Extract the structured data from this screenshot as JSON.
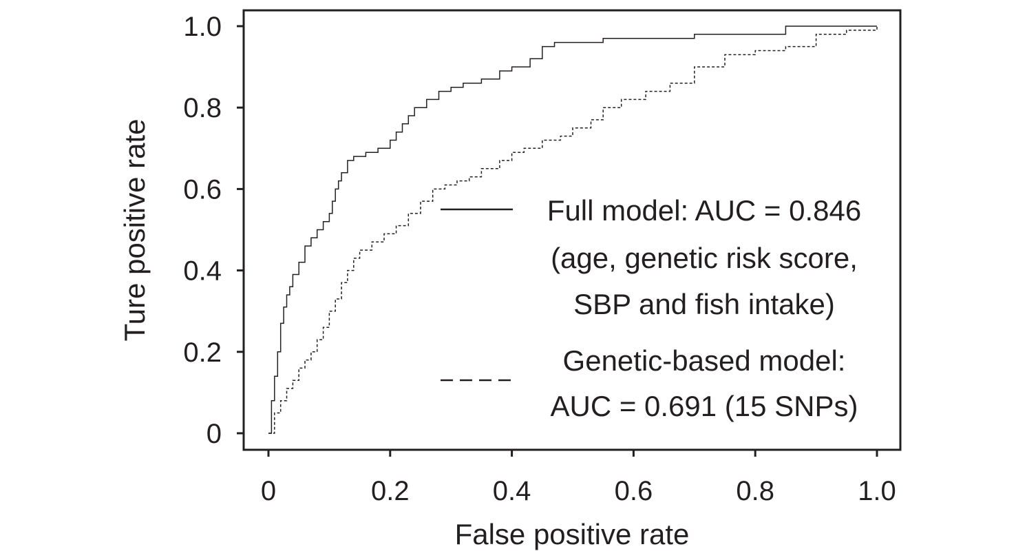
{
  "chart_data": {
    "type": "line",
    "xlabel": "False positive rate",
    "ylabel": "Ture positive rate",
    "xlim": [
      0,
      1
    ],
    "ylim": [
      0,
      1
    ],
    "x_ticks": [
      0,
      0.2,
      0.4,
      0.6,
      0.8,
      1.0
    ],
    "x_tick_labels": [
      "0",
      "0.2",
      "0.4",
      "0.6",
      "0.8",
      "1.0"
    ],
    "y_ticks": [
      0,
      0.2,
      0.4,
      0.6,
      0.8,
      1.0
    ],
    "y_tick_labels": [
      "0",
      "0.2",
      "0.4",
      "0.6",
      "0.8",
      "1.0"
    ],
    "grid": false,
    "legend_position": "right",
    "series": [
      {
        "legend_lines": [
          "Full model: AUC = 0.846",
          "(age, genetic risk score,",
          "SBP and fish intake)"
        ],
        "line_style": "solid",
        "x": [
          0,
          0.005,
          0.01,
          0.015,
          0.02,
          0.025,
          0.03,
          0.035,
          0.04,
          0.05,
          0.06,
          0.07,
          0.08,
          0.09,
          0.1,
          0.105,
          0.11,
          0.115,
          0.12,
          0.13,
          0.14,
          0.16,
          0.18,
          0.2,
          0.21,
          0.22,
          0.23,
          0.24,
          0.26,
          0.28,
          0.3,
          0.32,
          0.35,
          0.38,
          0.4,
          0.43,
          0.45,
          0.47,
          0.5,
          0.55,
          0.6,
          0.7,
          0.85,
          0.95,
          1.0
        ],
        "y": [
          0,
          0.08,
          0.14,
          0.2,
          0.27,
          0.31,
          0.34,
          0.36,
          0.39,
          0.42,
          0.46,
          0.48,
          0.5,
          0.52,
          0.54,
          0.57,
          0.6,
          0.62,
          0.64,
          0.67,
          0.68,
          0.69,
          0.7,
          0.72,
          0.74,
          0.76,
          0.78,
          0.8,
          0.82,
          0.84,
          0.85,
          0.86,
          0.87,
          0.89,
          0.9,
          0.92,
          0.95,
          0.96,
          0.96,
          0.97,
          0.97,
          0.98,
          1.0,
          1.0,
          1.0
        ]
      },
      {
        "legend_lines": [
          "Genetic-based model:",
          "AUC = 0.691 (15 SNPs)"
        ],
        "line_style": "dashed",
        "x": [
          0,
          0.01,
          0.02,
          0.03,
          0.04,
          0.05,
          0.06,
          0.07,
          0.08,
          0.09,
          0.1,
          0.11,
          0.12,
          0.13,
          0.14,
          0.15,
          0.17,
          0.19,
          0.21,
          0.23,
          0.25,
          0.27,
          0.29,
          0.31,
          0.33,
          0.35,
          0.38,
          0.4,
          0.42,
          0.45,
          0.48,
          0.5,
          0.53,
          0.55,
          0.58,
          0.62,
          0.66,
          0.7,
          0.75,
          0.8,
          0.85,
          0.9,
          0.95,
          1.0
        ],
        "y": [
          0,
          0.05,
          0.08,
          0.11,
          0.13,
          0.16,
          0.18,
          0.2,
          0.23,
          0.26,
          0.3,
          0.33,
          0.37,
          0.4,
          0.43,
          0.45,
          0.47,
          0.49,
          0.51,
          0.54,
          0.57,
          0.6,
          0.61,
          0.62,
          0.63,
          0.65,
          0.67,
          0.69,
          0.7,
          0.72,
          0.73,
          0.75,
          0.77,
          0.8,
          0.82,
          0.84,
          0.86,
          0.9,
          0.93,
          0.94,
          0.95,
          0.98,
          0.99,
          1.0
        ]
      }
    ]
  }
}
